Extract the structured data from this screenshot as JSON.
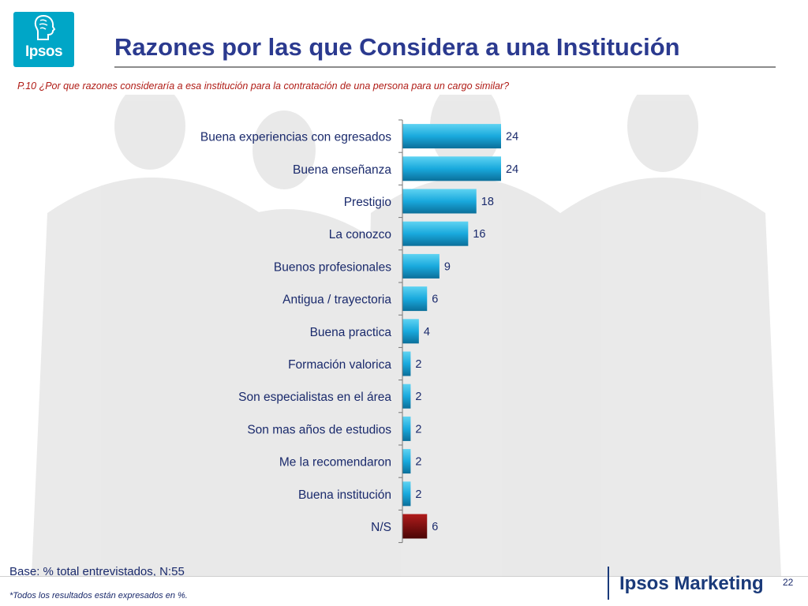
{
  "logo": {
    "text": "Ipsos"
  },
  "header": {
    "title": "Razones por las que Considera a una Institución",
    "question": "P.10 ¿Por que razones consideraría a esa institución para la contratación de una persona para un cargo similar?"
  },
  "chart_data": {
    "type": "bar",
    "orientation": "horizontal",
    "categories": [
      "Buena experiencias con egresados",
      "Buena enseñanza",
      "Prestigio",
      "La conozco",
      "Buenos profesionales",
      "Antigua / trayectoria",
      "Buena practica",
      "Formación valorica",
      "Son especialistas en el área",
      "Son mas años de estudios",
      "Me la recomendaron",
      "Buena institución",
      "N/S"
    ],
    "values": [
      24,
      24,
      18,
      16,
      9,
      6,
      4,
      2,
      2,
      2,
      2,
      2,
      6
    ],
    "data_labels": [
      "24",
      "24",
      "18",
      "16",
      "9",
      "6",
      "4",
      "2",
      "2",
      "2",
      "2",
      "2",
      "6"
    ],
    "colors": [
      "#19a9dd",
      "#19a9dd",
      "#19a9dd",
      "#19a9dd",
      "#19a9dd",
      "#19a9dd",
      "#19a9dd",
      "#19a9dd",
      "#19a9dd",
      "#19a9dd",
      "#19a9dd",
      "#19a9dd",
      "#7a0a0a"
    ],
    "xlim": [
      0,
      24
    ],
    "grid": false,
    "title": "",
    "xlabel": "",
    "ylabel": ""
  },
  "footer": {
    "base": "Base: % total entrevistados, N:55",
    "note": "*Todos los resultados están expresados en %.",
    "brand": "Ipsos Marketing",
    "page_number": "22"
  },
  "colors": {
    "title": "#2b3a8f",
    "question": "#b01c16",
    "logo_bg": "#00a6c7",
    "bar": "#19a9dd",
    "bar_ns": "#7a0a0a",
    "brand": "#1a3a7a"
  }
}
